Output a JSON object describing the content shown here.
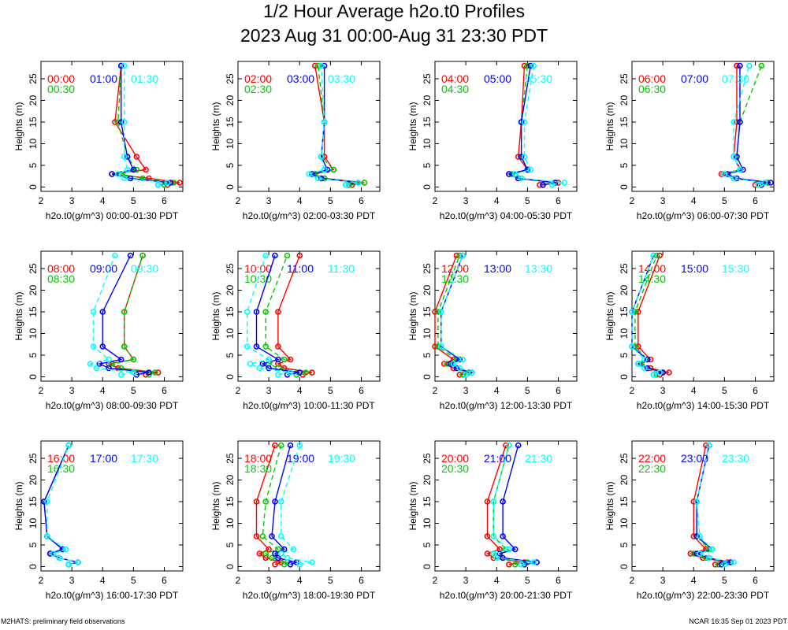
{
  "title": "1/2 Hour Average h2o.t0 Profiles",
  "subtitle": "2023 Aug 31 00:00-Aug 31 23:30 PDT",
  "footer_left": "M2HATS: preliminary field observations",
  "footer_right": "NCAR 16:35 Sep 01 2023 PDT",
  "colors": {
    "s0": "#ff0000",
    "s1": "#00cc00",
    "s2": "#0000ff",
    "s3": "#00ffff"
  },
  "chart_data": [
    {
      "type": "line",
      "xlabel": "h2o.t0(g/m^3) 00:00-01:30 PDT",
      "ylabel": "Heights (m)",
      "xlim": [
        2,
        6.6
      ],
      "ylim": [
        -1,
        29
      ],
      "xticks": [
        2,
        3,
        4,
        5,
        6
      ],
      "yticks": [
        0,
        5,
        10,
        15,
        20,
        25
      ],
      "heights": [
        0.5,
        1,
        2,
        3,
        4,
        7,
        15,
        28
      ],
      "series": [
        {
          "name": "00:00",
          "values": [
            6.1,
            6.5,
            5.5,
            4.3,
            5.4,
            5.1,
            4.4,
            4.6
          ]
        },
        {
          "name": "00:30",
          "values": [
            6.0,
            6.3,
            5.3,
            4.6,
            5.1,
            4.8,
            4.5,
            4.6
          ]
        },
        {
          "name": "01:00",
          "values": [
            5.8,
            6.2,
            4.9,
            4.3,
            5.0,
            4.8,
            4.6,
            4.6
          ]
        },
        {
          "name": "01:30",
          "values": [
            5.8,
            6.1,
            4.7,
            4.5,
            4.8,
            4.7,
            4.7,
            4.7
          ]
        }
      ]
    },
    {
      "type": "line",
      "xlabel": "h2o.t0(g/m^3) 02:00-03:30 PDT",
      "ylabel": "Heights (m)",
      "xlim": [
        2,
        6.6
      ],
      "ylim": [
        -1,
        29
      ],
      "xticks": [
        2,
        3,
        4,
        5,
        6
      ],
      "yticks": [
        0,
        5,
        10,
        15,
        20,
        25
      ],
      "heights": [
        0.5,
        1,
        2,
        3,
        4,
        7,
        15,
        28
      ],
      "series": [
        {
          "name": "02:00",
          "values": [
            5.7,
            6.1,
            4.8,
            4.5,
            5.1,
            4.8,
            4.8,
            4.5
          ]
        },
        {
          "name": "02:30",
          "values": [
            5.6,
            6.1,
            4.8,
            4.5,
            5.1,
            4.7,
            4.8,
            4.6
          ]
        },
        {
          "name": "03:00",
          "values": [
            5.5,
            5.9,
            4.7,
            4.4,
            4.9,
            4.7,
            4.8,
            4.8
          ]
        },
        {
          "name": "03:30",
          "values": [
            5.5,
            5.9,
            4.6,
            4.3,
            4.8,
            4.7,
            4.8,
            4.7
          ]
        }
      ]
    },
    {
      "type": "line",
      "xlabel": "h2o.t0(g/m^3) 04:00-05:30 PDT",
      "ylabel": "Heights (m)",
      "xlim": [
        2,
        6.6
      ],
      "ylim": [
        -1,
        29
      ],
      "xticks": [
        2,
        3,
        4,
        5,
        6
      ],
      "yticks": [
        0,
        5,
        10,
        15,
        20,
        25
      ],
      "heights": [
        0.5,
        1,
        2,
        3,
        4,
        7,
        15,
        28
      ],
      "series": [
        {
          "name": "04:00",
          "values": [
            5.4,
            6.0,
            4.7,
            4.4,
            5.0,
            4.7,
            4.8,
            4.9
          ]
        },
        {
          "name": "04:30",
          "values": [
            5.5,
            5.9,
            4.8,
            4.5,
            5.0,
            4.8,
            4.8,
            5.0
          ]
        },
        {
          "name": "05:00",
          "values": [
            5.5,
            5.9,
            4.7,
            4.4,
            5.0,
            4.8,
            4.8,
            5.1
          ]
        },
        {
          "name": "05:30",
          "values": [
            5.8,
            6.2,
            4.8,
            4.6,
            5.1,
            4.9,
            4.9,
            5.2
          ]
        }
      ]
    },
    {
      "type": "line",
      "xlabel": "h2o.t0(g/m^3) 06:00-07:30 PDT",
      "ylabel": "Heights (m)",
      "xlim": [
        2,
        6.6
      ],
      "ylim": [
        -1,
        29
      ],
      "xticks": [
        2,
        3,
        4,
        5,
        6
      ],
      "yticks": [
        0,
        5,
        10,
        15,
        20,
        25
      ],
      "heights": [
        0.5,
        1,
        2,
        3,
        4,
        7,
        15,
        28
      ],
      "series": [
        {
          "name": "06:00",
          "values": [
            6.0,
            6.4,
            5.3,
            4.9,
            5.5,
            5.3,
            5.4,
            5.4
          ]
        },
        {
          "name": "06:30",
          "values": [
            6.1,
            6.4,
            5.3,
            5.0,
            5.5,
            5.4,
            5.5,
            6.2
          ]
        },
        {
          "name": "07:00",
          "values": [
            6.2,
            6.5,
            5.4,
            5.1,
            5.6,
            5.4,
            5.5,
            5.5
          ]
        },
        {
          "name": "07:30",
          "values": [
            6.1,
            6.3,
            5.3,
            5.0,
            5.5,
            5.3,
            5.3,
            5.8
          ]
        }
      ]
    },
    {
      "type": "line",
      "xlabel": "h2o.t0(g/m^3) 08:00-09:30 PDT",
      "ylabel": "Heights (m)",
      "xlim": [
        2,
        6.6
      ],
      "ylim": [
        -1,
        29
      ],
      "xticks": [
        2,
        3,
        4,
        5,
        6
      ],
      "yticks": [
        0,
        5,
        10,
        15,
        20,
        25
      ],
      "heights": [
        0.5,
        1,
        2,
        3,
        4,
        7,
        15,
        28
      ],
      "series": [
        {
          "name": "08:00",
          "values": [
            5.4,
            5.8,
            4.5,
            4.2,
            5.0,
            4.7,
            4.7,
            5.3
          ]
        },
        {
          "name": "08:30",
          "values": [
            5.5,
            5.7,
            4.6,
            4.3,
            5.0,
            4.7,
            4.7,
            5.3
          ]
        },
        {
          "name": "09:00",
          "values": [
            5.1,
            5.5,
            4.2,
            3.9,
            4.6,
            4.0,
            4.0,
            4.9
          ]
        },
        {
          "name": "09:30",
          "values": [
            4.6,
            5.0,
            3.8,
            3.6,
            4.2,
            3.7,
            3.7,
            4.4
          ]
        }
      ]
    },
    {
      "type": "line",
      "xlabel": "h2o.t0(g/m^3) 10:00-11:30 PDT",
      "ylabel": "Heights (m)",
      "xlim": [
        2,
        6.6
      ],
      "ylim": [
        -1,
        29
      ],
      "xticks": [
        2,
        3,
        4,
        5,
        6
      ],
      "yticks": [
        0,
        5,
        10,
        15,
        20,
        25
      ],
      "heights": [
        0.5,
        1,
        2,
        3,
        4,
        7,
        15,
        28
      ],
      "series": [
        {
          "name": "10:00",
          "values": [
            4.1,
            4.4,
            3.5,
            3.3,
            3.7,
            3.3,
            3.3,
            4.0
          ]
        },
        {
          "name": "10:30",
          "values": [
            3.9,
            4.2,
            3.3,
            3.0,
            3.5,
            2.9,
            2.9,
            3.6
          ]
        },
        {
          "name": "11:00",
          "values": [
            3.6,
            4.0,
            3.0,
            2.8,
            3.3,
            2.6,
            2.6,
            3.2
          ]
        },
        {
          "name": "11:30",
          "values": [
            3.3,
            3.7,
            2.7,
            2.4,
            3.0,
            2.3,
            2.3,
            2.9
          ]
        }
      ]
    },
    {
      "type": "line",
      "xlabel": "h2o.t0(g/m^3) 12:00-13:30 PDT",
      "ylabel": "Heights (m)",
      "xlim": [
        2,
        6.6
      ],
      "ylim": [
        -1,
        29
      ],
      "xticks": [
        2,
        3,
        4,
        5,
        6
      ],
      "yticks": [
        0,
        5,
        10,
        15,
        20,
        25
      ],
      "heights": [
        0.5,
        1,
        2,
        3,
        4,
        7,
        15,
        28
      ],
      "series": [
        {
          "name": "12:00",
          "values": [
            2.8,
            3.1,
            2.6,
            2.3,
            2.6,
            2.0,
            2.0,
            2.7
          ]
        },
        {
          "name": "12:30",
          "values": [
            2.9,
            3.1,
            2.7,
            2.4,
            2.7,
            2.1,
            2.1,
            2.8
          ]
        },
        {
          "name": "13:00",
          "values": [
            3.0,
            3.2,
            2.7,
            2.5,
            2.8,
            2.2,
            2.2,
            2.9
          ]
        },
        {
          "name": "13:30",
          "values": [
            3.0,
            3.2,
            2.8,
            2.6,
            2.9,
            2.2,
            2.2,
            2.9
          ]
        }
      ]
    },
    {
      "type": "line",
      "xlabel": "h2o.t0(g/m^3) 14:00-15:30 PDT",
      "ylabel": "Heights (m)",
      "xlim": [
        2,
        6.6
      ],
      "ylim": [
        -1,
        29
      ],
      "xticks": [
        2,
        3,
        4,
        5,
        6
      ],
      "yticks": [
        0,
        5,
        10,
        15,
        20,
        25
      ],
      "heights": [
        0.5,
        1,
        2,
        3,
        4,
        7,
        15,
        28
      ],
      "series": [
        {
          "name": "14:00",
          "values": [
            2.9,
            3.2,
            2.6,
            2.3,
            2.6,
            2.2,
            2.2,
            2.9
          ]
        },
        {
          "name": "14:30",
          "values": [
            2.8,
            3.0,
            2.5,
            2.3,
            2.5,
            2.1,
            2.1,
            2.8
          ]
        },
        {
          "name": "15:00",
          "values": [
            2.7,
            3.0,
            2.5,
            2.2,
            2.5,
            2.0,
            2.0,
            2.7
          ]
        },
        {
          "name": "15:30",
          "values": [
            2.7,
            2.9,
            2.4,
            2.2,
            2.4,
            2.0,
            2.0,
            2.7
          ]
        }
      ]
    },
    {
      "type": "line",
      "xlabel": "h2o.t0(g/m^3) 16:00-17:30 PDT",
      "ylabel": "Heights (m)",
      "xlim": [
        2,
        6.6
      ],
      "ylim": [
        -1,
        29
      ],
      "xticks": [
        2,
        3,
        4,
        5,
        6
      ],
      "yticks": [
        0,
        5,
        10,
        15,
        20,
        25
      ],
      "heights": [
        0.5,
        1,
        2,
        3,
        4,
        7,
        15,
        28
      ],
      "series": [
        {
          "name": "16:00",
          "values": [
            2.9,
            3.2,
            2.6,
            2.3,
            2.7,
            2.2,
            2.1,
            2.9
          ]
        },
        {
          "name": "16:30",
          "values": [
            2.9,
            3.2,
            2.6,
            2.3,
            2.7,
            2.2,
            2.1,
            2.9
          ]
        },
        {
          "name": "17:00",
          "values": [
            2.9,
            3.2,
            2.6,
            2.3,
            2.7,
            2.2,
            2.1,
            2.9
          ]
        },
        {
          "name": "17:30",
          "values": [
            2.9,
            3.2,
            2.6,
            2.4,
            2.8,
            2.2,
            2.2,
            2.9
          ]
        }
      ]
    },
    {
      "type": "line",
      "xlabel": "h2o.t0(g/m^3) 18:00-19:30 PDT",
      "ylabel": "Heights (m)",
      "xlim": [
        2,
        6.6
      ],
      "ylim": [
        -1,
        29
      ],
      "xticks": [
        2,
        3,
        4,
        5,
        6
      ],
      "yticks": [
        0,
        5,
        10,
        15,
        20,
        25
      ],
      "heights": [
        0.5,
        1,
        2,
        3,
        4,
        7,
        15,
        28
      ],
      "series": [
        {
          "name": "18:00",
          "values": [
            3.2,
            3.4,
            2.9,
            2.7,
            3.0,
            2.6,
            2.6,
            3.2
          ]
        },
        {
          "name": "18:30",
          "values": [
            3.5,
            3.6,
            3.1,
            2.9,
            3.3,
            2.8,
            2.9,
            3.4
          ]
        },
        {
          "name": "19:00",
          "values": [
            3.7,
            3.9,
            3.3,
            3.2,
            3.5,
            3.1,
            3.2,
            3.7
          ]
        },
        {
          "name": "19:30",
          "values": [
            4.0,
            4.4,
            3.6,
            3.4,
            3.8,
            3.4,
            3.4,
            4.0
          ]
        }
      ]
    },
    {
      "type": "line",
      "xlabel": "h2o.t0(g/m^3) 20:00-21:30 PDT",
      "ylabel": "Heights (m)",
      "xlim": [
        2,
        6.6
      ],
      "ylim": [
        -1,
        29
      ],
      "xticks": [
        2,
        3,
        4,
        5,
        6
      ],
      "yticks": [
        0,
        5,
        10,
        15,
        20,
        25
      ],
      "heights": [
        0.5,
        1,
        2,
        3,
        4,
        7,
        15,
        28
      ],
      "series": [
        {
          "name": "20:00",
          "values": [
            4.4,
            4.9,
            3.9,
            3.7,
            4.1,
            3.7,
            3.7,
            4.3
          ]
        },
        {
          "name": "20:30",
          "values": [
            4.6,
            5.0,
            4.0,
            3.9,
            4.3,
            3.9,
            3.9,
            4.4
          ]
        },
        {
          "name": "21:00",
          "values": [
            4.9,
            5.3,
            4.2,
            4.1,
            4.6,
            4.2,
            4.2,
            4.7
          ]
        },
        {
          "name": "21:30",
          "values": [
            4.8,
            5.2,
            4.0,
            3.9,
            4.4,
            3.9,
            3.9,
            4.4
          ]
        }
      ]
    },
    {
      "type": "line",
      "xlabel": "h2o.t0(g/m^3) 22:00-23:30 PDT",
      "ylabel": "Heights (m)",
      "xlim": [
        2,
        6.6
      ],
      "ylim": [
        -1,
        29
      ],
      "xticks": [
        2,
        3,
        4,
        5,
        6
      ],
      "yticks": [
        0,
        5,
        10,
        15,
        20,
        25
      ],
      "heights": [
        0.5,
        1,
        2,
        3,
        4,
        7,
        15,
        28
      ],
      "series": [
        {
          "name": "22:00",
          "values": [
            4.7,
            5.1,
            4.3,
            3.9,
            4.4,
            4.0,
            4.0,
            4.4
          ]
        },
        {
          "name": "22:30",
          "values": [
            4.8,
            5.2,
            4.4,
            4.0,
            4.5,
            4.1,
            4.1,
            4.5
          ]
        },
        {
          "name": "23:00",
          "values": [
            4.9,
            5.2,
            4.5,
            4.1,
            4.6,
            4.1,
            4.1,
            4.5
          ]
        },
        {
          "name": "23:30",
          "values": [
            5.0,
            5.3,
            4.5,
            4.2,
            4.6,
            4.2,
            4.1,
            4.5
          ]
        }
      ]
    }
  ]
}
